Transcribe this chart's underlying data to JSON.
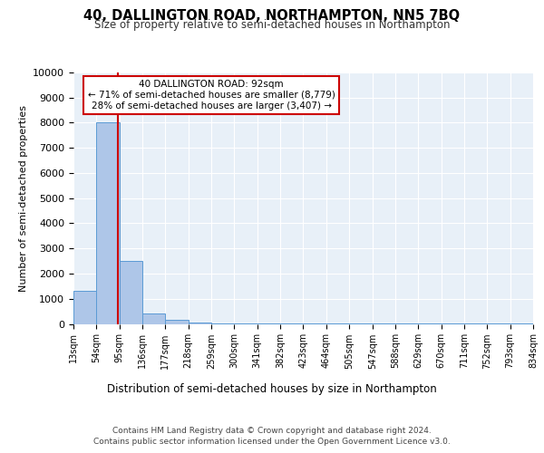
{
  "title": "40, DALLINGTON ROAD, NORTHAMPTON, NN5 7BQ",
  "subtitle": "Size of property relative to semi-detached houses in Northampton",
  "xlabel_bottom": "Distribution of semi-detached houses by size in Northampton",
  "ylabel": "Number of semi-detached properties",
  "property_size": 92,
  "annotation_line1": "40 DALLINGTON ROAD: 92sqm",
  "annotation_line2": "← 71% of semi-detached houses are smaller (8,779)",
  "annotation_line3": "28% of semi-detached houses are larger (3,407) →",
  "footer_line1": "Contains HM Land Registry data © Crown copyright and database right 2024.",
  "footer_line2": "Contains public sector information licensed under the Open Government Licence v3.0.",
  "bin_edges": [
    13,
    54,
    95,
    136,
    177,
    218,
    259,
    300,
    341,
    382,
    423,
    464,
    505,
    547,
    588,
    629,
    670,
    711,
    752,
    793,
    834
  ],
  "bin_counts": [
    1300,
    8000,
    2500,
    400,
    150,
    50,
    20,
    10,
    5,
    5,
    5,
    3,
    3,
    2,
    2,
    2,
    1,
    1,
    1,
    1
  ],
  "bar_color": "#aec6e8",
  "bar_edge_color": "#5b9bd5",
  "red_line_color": "#cc0000",
  "annotation_box_color": "#cc0000",
  "ylim": [
    0,
    10000
  ],
  "yticks": [
    0,
    1000,
    2000,
    3000,
    4000,
    5000,
    6000,
    7000,
    8000,
    9000,
    10000
  ],
  "background_color": "#e8f0f8",
  "grid_color": "#ffffff"
}
